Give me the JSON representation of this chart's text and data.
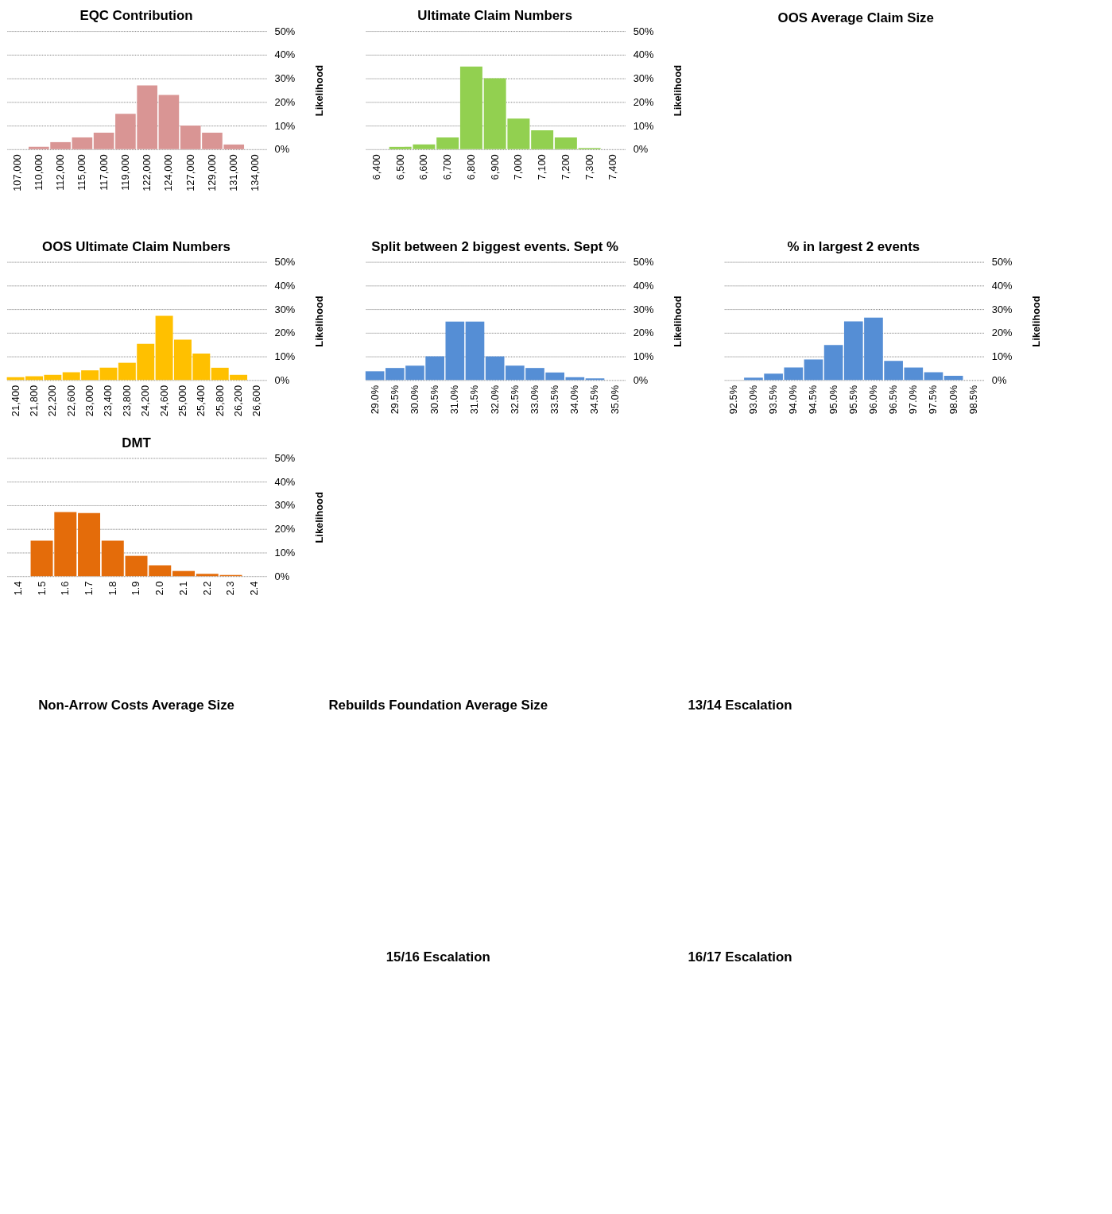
{
  "chart_data": [
    {
      "type": "bar",
      "title": "EQC Contribution",
      "ylabel": "Likelihood",
      "categories": [
        "107,000",
        "110,000",
        "112,000",
        "115,000",
        "117,000",
        "119,000",
        "122,000",
        "124,000",
        "127,000",
        "129,000",
        "131,000",
        "134,000"
      ],
      "values": [
        null,
        1,
        3,
        5,
        7,
        15,
        27,
        23,
        10,
        7,
        2,
        null
      ],
      "color": "#d99594",
      "ylim": [
        0,
        50
      ],
      "yticks": [
        {
          "value": 0,
          "label": "0%"
        },
        {
          "value": 10,
          "label": "10%"
        },
        {
          "value": 20,
          "label": "20%"
        },
        {
          "value": 30,
          "label": "30%"
        },
        {
          "value": 40,
          "label": "40%"
        },
        {
          "value": 50,
          "label": "50%"
        }
      ],
      "grid": "y"
    },
    {
      "type": "bar",
      "title": "Ultimate  Claim  Numbers",
      "ylabel": "Likelihood",
      "categories": [
        "6,400",
        "6,500",
        "6,600",
        "6,700",
        "6,800",
        "6,900",
        "7,000",
        "7,100",
        "7,200",
        "7,300",
        "7,400"
      ],
      "values": [
        null,
        1,
        2,
        5,
        35,
        30,
        13,
        8,
        5,
        0.5,
        null
      ],
      "color": "#92d050",
      "ylim": [
        0,
        50
      ],
      "yticks": [
        {
          "value": 0,
          "label": "0%"
        },
        {
          "value": 10,
          "label": "10%"
        },
        {
          "value": 20,
          "label": "20%"
        },
        {
          "value": 30,
          "label": "30%"
        },
        {
          "value": 40,
          "label": "40%"
        },
        {
          "value": 50,
          "label": "50%"
        }
      ],
      "grid": "y"
    },
    {
      "type": "other",
      "title": "OOS Average Claim Size"
    },
    {
      "type": "bar",
      "title": "OOS Ultimate  Claim  Numbers",
      "ylabel": "Likelihood",
      "categories": [
        "21,400",
        "21,800",
        "22,200",
        "22,600",
        "23,000",
        "23,400",
        "23,800",
        "24,200",
        "24,600",
        "25,000",
        "25,400",
        "25,800",
        "26,200",
        "26,600"
      ],
      "values": [
        1.2,
        1.6,
        2.2,
        3.3,
        4.1,
        5.2,
        7.3,
        15.3,
        27.2,
        17.1,
        11.2,
        5.2,
        2.2,
        null
      ],
      "color": "#ffc000",
      "ylim": [
        0,
        50
      ],
      "yticks": [
        {
          "value": 0,
          "label": "0%"
        },
        {
          "value": 10,
          "label": "10%"
        },
        {
          "value": 20,
          "label": "20%"
        },
        {
          "value": 30,
          "label": "30%"
        },
        {
          "value": 40,
          "label": "40%"
        },
        {
          "value": 50,
          "label": "50%"
        }
      ],
      "grid": "y"
    },
    {
      "type": "bar",
      "title": "Split between 2 biggest events. Sept %",
      "ylabel": "Likelihood",
      "categories": [
        "29.0%",
        "29.5%",
        "30.0%",
        "30.5%",
        "31.0%",
        "31.5%",
        "32.0%",
        "32.5%",
        "33.0%",
        "33.5%",
        "34.0%",
        "34.5%",
        "35.0%"
      ],
      "values": [
        3.7,
        5.1,
        6.1,
        10,
        24.7,
        24.7,
        10,
        6.1,
        5.1,
        3.2,
        1.2,
        0.7,
        null
      ],
      "color": "#558ed5",
      "ylim": [
        0,
        50
      ],
      "yticks": [
        {
          "value": 0,
          "label": "0%"
        },
        {
          "value": 10,
          "label": "10%"
        },
        {
          "value": 20,
          "label": "20%"
        },
        {
          "value": 30,
          "label": "30%"
        },
        {
          "value": 40,
          "label": "40%"
        },
        {
          "value": 50,
          "label": "50%"
        }
      ],
      "grid": "y"
    },
    {
      "type": "bar",
      "title": "% in largest 2 events",
      "ylabel": "Likelihood",
      "categories": [
        "92.5%",
        "93.0%",
        "93.5%",
        "94.0%",
        "94.5%",
        "95.0%",
        "95.5%",
        "96.0%",
        "96.5%",
        "97.0%",
        "97.5%",
        "98.0%",
        "98.5%"
      ],
      "values": [
        null,
        1,
        2.7,
        5.3,
        8.7,
        14.8,
        24.8,
        26.4,
        8.1,
        5.3,
        3.3,
        1.8,
        null
      ],
      "color": "#558ed5",
      "ylim": [
        0,
        50
      ],
      "yticks": [
        {
          "value": 0,
          "label": "0%"
        },
        {
          "value": 10,
          "label": "10%"
        },
        {
          "value": 20,
          "label": "20%"
        },
        {
          "value": 30,
          "label": "30%"
        },
        {
          "value": 40,
          "label": "40%"
        },
        {
          "value": 50,
          "label": "50%"
        }
      ],
      "grid": "y"
    },
    {
      "type": "bar",
      "title": "DMT",
      "ylabel": "Likelihood",
      "categories": [
        "1.4",
        "1.5",
        "1.6",
        "1.7",
        "1.8",
        "1.9",
        "2.0",
        "2.1",
        "2.2",
        "2.3",
        "2.4"
      ],
      "values": [
        null,
        15,
        27.1,
        26.7,
        15,
        8.6,
        4.6,
        2.2,
        1,
        0.5,
        null
      ],
      "color": "#e46c0a",
      "ylim": [
        0,
        50
      ],
      "yticks": [
        {
          "value": 0,
          "label": "0%"
        },
        {
          "value": 10,
          "label": "10%"
        },
        {
          "value": 20,
          "label": "20%"
        },
        {
          "value": 30,
          "label": "30%"
        },
        {
          "value": 40,
          "label": "40%"
        },
        {
          "value": 50,
          "label": "50%"
        }
      ],
      "grid": "y"
    },
    {
      "type": "other"
    },
    {
      "type": "other",
      "title": "Non-Arrow  Costs Average Size"
    },
    {
      "type": "other",
      "title": "Rebuilds  Foundation Average Size"
    },
    {
      "type": "other",
      "title": "13/14 Escalation"
    },
    {
      "type": "other"
    },
    {
      "type": "other",
      "title": "15/16 Escalation"
    },
    {
      "type": "other",
      "title": "16/17 Escalation"
    }
  ]
}
